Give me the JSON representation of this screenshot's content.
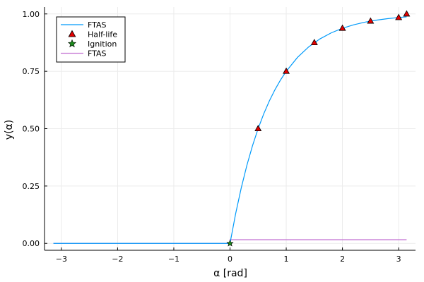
{
  "chart_data": {
    "type": "line",
    "title": "",
    "xlabel": "α [rad]",
    "ylabel": "y(α)",
    "xlim": [
      -3.3,
      3.3
    ],
    "ylim": [
      -0.03,
      1.03
    ],
    "xticks": [
      -3,
      -2,
      -1,
      0,
      1,
      2,
      3
    ],
    "xtick_labels": [
      "−3",
      "−2",
      "−1",
      "0",
      "1",
      "2",
      "3"
    ],
    "yticks": [
      0.0,
      0.25,
      0.5,
      0.75,
      1.0
    ],
    "ytick_labels": [
      "0.00",
      "0.25",
      "0.50",
      "0.75",
      "1.00"
    ],
    "grid": true,
    "legend_position": "top-left",
    "colors": {
      "ftas_line": "#009AFA",
      "half_life": "#E30000",
      "ignition": "#1C8B1C",
      "ftas_flat": "#C271D2",
      "grid": "#EBEBEB",
      "axis": "#000000"
    },
    "series": [
      {
        "name": "FTAS",
        "kind": "line",
        "color": "#009AFA",
        "x": [
          -3.1416,
          0.0,
          0.1,
          0.2,
          0.3,
          0.4,
          0.5,
          0.6,
          0.7,
          0.8,
          0.9,
          1.0,
          1.2,
          1.4,
          1.6,
          1.8,
          2.0,
          2.2,
          2.4,
          2.6,
          2.8,
          3.0,
          3.1416
        ],
        "y": [
          0.0,
          0.0,
          0.1294,
          0.2421,
          0.3402,
          0.4257,
          0.5,
          0.5647,
          0.6211,
          0.6701,
          0.7128,
          0.75,
          0.8105,
          0.8564,
          0.8912,
          0.9175,
          0.9375,
          0.9526,
          0.9641,
          0.9728,
          0.9794,
          0.9844,
          0.9872
        ]
      },
      {
        "name": "Half-life",
        "kind": "scatter",
        "marker": "triangle",
        "color": "#E30000",
        "x": [
          0.5,
          1.0,
          1.5,
          2.0,
          2.5,
          3.0,
          3.1416
        ],
        "y": [
          0.5,
          0.75,
          0.875,
          0.9375,
          0.9688,
          0.9844,
          1.0
        ]
      },
      {
        "name": "Ignition",
        "kind": "scatter",
        "marker": "star",
        "color": "#1C8B1C",
        "x": [
          0.0
        ],
        "y": [
          0.0
        ]
      },
      {
        "name": "FTAS",
        "kind": "step",
        "color": "#C271D2",
        "x": [
          -3.1416,
          0.0,
          0.0,
          3.1416
        ],
        "y": [
          0.0,
          0.0,
          0.016,
          0.016
        ]
      }
    ]
  }
}
